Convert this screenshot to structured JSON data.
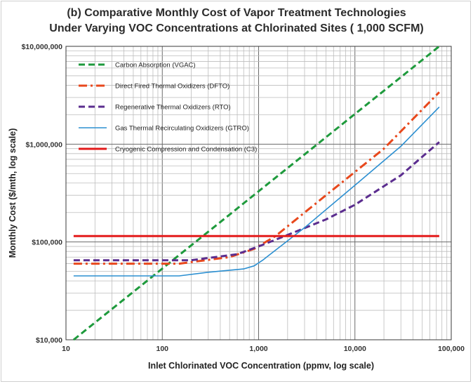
{
  "chart_data": {
    "type": "line",
    "title": [
      "(b) Comparative Monthly Cost of Vapor Treatment Technologies",
      "Under Varying VOC Concentrations at Chlorinated Sites ( 1,000 SCFM)"
    ],
    "xlabel": "Inlet Chlorinated VOC Concentration (ppmv, log scale)",
    "ylabel": "Monthly Cost ($/mth, log scale)",
    "xscale": "log",
    "yscale": "log",
    "xlim": [
      10,
      100000
    ],
    "ylim": [
      10000,
      10000000
    ],
    "x_tick_labels": [
      "10",
      "100",
      "1,000",
      "10,000",
      "100,000"
    ],
    "y_tick_labels": [
      "$10,000",
      "$100,000",
      "$1,000,000",
      "$10,000,000"
    ],
    "grid": "on (major and minor)",
    "legend_position": "top-left",
    "series": [
      {
        "name": "Carbon Absorption (VGAC)",
        "color": "#1e9a3c",
        "style": "dashed",
        "x": [
          12,
          75000
        ],
        "y": [
          10000,
          10000000
        ]
      },
      {
        "name": "Direct Fired Thermal Oxidizers (DFTO)",
        "color": "#e8481c",
        "style": "dash-dot",
        "x": [
          12,
          150,
          500,
          900,
          1500,
          5000,
          20000,
          75000
        ],
        "y": [
          60000,
          60000,
          70000,
          85000,
          115000,
          300000,
          900000,
          3400000
        ]
      },
      {
        "name": "Regenerative Thermal Oxidizers (RTO)",
        "color": "#5b2d8f",
        "style": "dashed",
        "x": [
          12,
          200,
          600,
          1000,
          2000,
          5000,
          10000,
          30000,
          75000
        ],
        "y": [
          65000,
          65000,
          75000,
          90000,
          118000,
          170000,
          240000,
          480000,
          1050000
        ]
      },
      {
        "name": "Gas Thermal Recirculating Oxidizers (GTRO)",
        "color": "#2b8fd1",
        "style": "solid",
        "x": [
          12,
          150,
          300,
          700,
          900,
          1100,
          3000,
          10000,
          30000,
          75000
        ],
        "y": [
          45000,
          45000,
          49000,
          53000,
          57000,
          65000,
          140000,
          380000,
          950000,
          2400000
        ]
      },
      {
        "name": "Cryogenic Compression and Condensation (C3)",
        "color": "#e31b1b",
        "style": "solid",
        "x": [
          12,
          75000
        ],
        "y": [
          115000,
          115000
        ]
      }
    ]
  }
}
